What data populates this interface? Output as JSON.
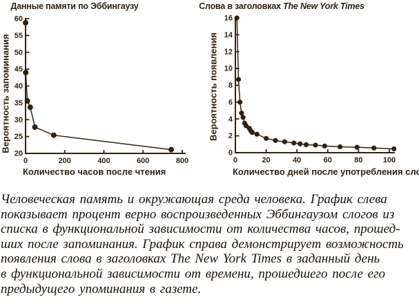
{
  "page": {
    "background": "#ffffff",
    "ink": "#32210f",
    "caption_color": "#17120c"
  },
  "chart_data": [
    {
      "type": "line",
      "title": "Данные памяти по Эббингаузу",
      "xlabel": "Количество часов после чтения",
      "ylabel": "Вероятность запоминания",
      "x": [
        0.32,
        1,
        9,
        24,
        48,
        144,
        744
      ],
      "y": [
        58.8,
        44.0,
        35.6,
        33.7,
        27.8,
        25.4,
        21.1
      ],
      "xlim": [
        0,
        800
      ],
      "ylim": [
        20,
        60
      ],
      "x_ticks": [
        0,
        200,
        400,
        600,
        800
      ],
      "y_ticks": [
        20,
        25,
        30,
        35,
        40,
        45,
        50,
        55,
        60
      ],
      "marker": "filled-circle",
      "grid": false,
      "legend": null
    },
    {
      "type": "line",
      "title": "Слова в заголовках The New York Times",
      "title_regular": "Слова в заголовках ",
      "title_italic": "The New York Times",
      "xlabel": "Количество дней после употребления слова",
      "ylabel": "Вероятность появления",
      "x": [
        1,
        2,
        3,
        4,
        5,
        6,
        7,
        9,
        10,
        11,
        14,
        20,
        26,
        32,
        38,
        42,
        46,
        52,
        58,
        68,
        79,
        90,
        103
      ],
      "y": [
        16,
        8.7,
        6.0,
        4.7,
        4.2,
        3.5,
        3.2,
        2.9,
        2.6,
        2.4,
        2.2,
        1.7,
        1.45,
        1.3,
        1.15,
        1.05,
        0.95,
        0.9,
        0.8,
        0.7,
        0.65,
        0.55,
        0.45
      ],
      "xlim": [
        0,
        100
      ],
      "ylim": [
        0,
        16
      ],
      "x_ticks": [
        0,
        20,
        40,
        60,
        80,
        100
      ],
      "y_ticks": [
        0,
        2,
        4,
        6,
        8,
        10,
        12,
        14,
        16
      ],
      "marker": "filled-circle",
      "grid": false,
      "legend": null
    }
  ],
  "caption": {
    "lines": [
      "Человеческая память и окружающая среда человека. График слева",
      "показывает процент верно воспроизведенных Эббингаузом слогов из",
      "списка в функциональной зависимости от количества часов, прошед-",
      "ших после запоминания. График справа демонстрирует возможность",
      "появления слова в заголовках The New York Times в заданный день",
      "в функциональной зависимости от времени, прошедшего после его",
      "предыдущего упоминания в газете."
    ]
  }
}
